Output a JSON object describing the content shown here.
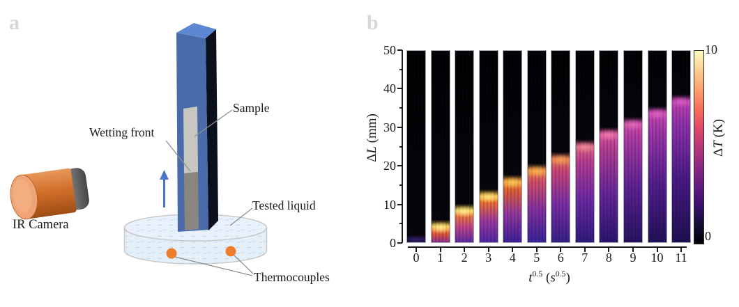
{
  "figure": {
    "panel_a_letter": "a",
    "panel_b_letter": "b"
  },
  "panel_a": {
    "labels": {
      "ir_camera": "IR Camera",
      "wetting_front": "Wetting front",
      "sample": "Sample",
      "tested_liquid": "Tested liquid",
      "thermocouples": "Thermocouples"
    },
    "colors": {
      "column_front": "#4a6ba9",
      "column_side": "#0c101e",
      "column_top": "#5d87d2",
      "sample_dry": "#c9c6c1",
      "sample_wet": "#8b8580",
      "camera_body": "#d2702a",
      "camera_face": "#efa477",
      "camera_cap": "#6a6a6a",
      "liquid_fill": "#e9f2fa",
      "liquid_speckle": "#bcd7ee",
      "thermocouple": "#ee7d2e",
      "arrow": "#4b76c8",
      "leader_line": "#8f8f8f"
    }
  },
  "panel_b": {
    "y_axis": {
      "title_delta": "Δ",
      "title_var": "L",
      "title_unit": " (mm)",
      "ticks": [
        "50",
        "40",
        "30",
        "20",
        "10",
        "0"
      ]
    },
    "x_axis": {
      "title_var": "t",
      "title_exp": "0.5",
      "title_mid": " (",
      "title_unit_var": "s",
      "title_unit_exp": "0.5",
      "title_close": ")",
      "ticks": [
        "0",
        "1",
        "2",
        "3",
        "4",
        "5",
        "6",
        "7",
        "8",
        "9",
        "10",
        "11"
      ]
    },
    "colorbar": {
      "title_delta": "Δ",
      "title_var": "T",
      "title_unit": " (K)",
      "max_label": "10",
      "min_label": "0"
    }
  },
  "chart_data": {
    "type": "heatmap",
    "description": "Sequence of 12 IR thermal images of a porous strip during capillary rise, one image per square-root-of-time value; the bright band marks the rising wetting front, which dims as it climbs.",
    "x": [
      0,
      1,
      2,
      3,
      4,
      5,
      6,
      7,
      8,
      9,
      10,
      11
    ],
    "xlabel": "t^0.5 (s^0.5)",
    "ylabel": "ΔL (mm)",
    "ylim": [
      0,
      50
    ],
    "colorbar_label": "ΔT (K)",
    "colorbar_range": [
      0,
      10
    ],
    "colormap": "magma",
    "colormap_stops": [
      "#000004",
      "#140e36",
      "#3b0f70",
      "#641a80",
      "#8c2981",
      "#b73779",
      "#de4968",
      "#f7705c",
      "#fe9f6d",
      "#fece91",
      "#fcfdbf"
    ],
    "wetting_front_mm": [
      0.8,
      4.7,
      8.9,
      12.7,
      16.5,
      19.4,
      22.4,
      25.7,
      28.9,
      31.6,
      34.4,
      37.5
    ],
    "front_peak_dT_K": [
      0.3,
      9,
      8.5,
      8,
      7.5,
      7,
      6.5,
      6,
      5.5,
      5,
      4.5,
      4
    ],
    "strip_styles": [
      {
        "tail0": "#140b33",
        "tail1": "#1d1045",
        "tail2": "#241456",
        "peak": "#2a175e",
        "core": "rgba(70,45,130,0.45)"
      },
      {
        "tail0": "#8c2f8e",
        "tail1": "#e0553a",
        "tail2": "#fb9b2f",
        "peak": "#fcd04a",
        "core": "#ffe98c"
      },
      {
        "tail0": "#5e2ba2",
        "tail1": "#c44489",
        "tail2": "#f58231",
        "peak": "#fcd04a",
        "core": "#ffeb96"
      },
      {
        "tail0": "#4f28a2",
        "tail1": "#a03a9e",
        "tail2": "#ef702f",
        "peak": "#fbbf3c",
        "core": "#fde07e"
      },
      {
        "tail0": "#3c2096",
        "tail1": "#93389e",
        "tail2": "#e06034",
        "peak": "#f59d38",
        "core": "#fbc354"
      },
      {
        "tail0": "#3a2398",
        "tail1": "#86319f",
        "tail2": "#d44f66",
        "peak": "#f18f42",
        "core": "#f8b050"
      },
      {
        "tail0": "#342086",
        "tail1": "#7c2ea4",
        "tail2": "#c84478",
        "peak": "#ea7a52",
        "core": "#f49a58"
      },
      {
        "tail0": "#2e1b7c",
        "tail1": "#6f2aa4",
        "tail2": "#b83d90",
        "peak": "#e06486",
        "core": "#ef8896"
      },
      {
        "tail0": "#2a156c",
        "tail1": "#672798",
        "tail2": "#b03d92",
        "peak": "#da549c",
        "core": "#ea78ac"
      },
      {
        "tail0": "#261361",
        "tail1": "#5d2292",
        "tail2": "#a53aa0",
        "peak": "#d048a8",
        "core": "#df6ab6"
      },
      {
        "tail0": "#221158",
        "tail1": "#531e8c",
        "tail2": "#9b36a6",
        "peak": "#c845ae",
        "core": "#d862be"
      },
      {
        "tail0": "#1e0f50",
        "tail1": "#4a1b86",
        "tail2": "#9133aa",
        "peak": "#c23fb0",
        "core": "#d25cc0"
      }
    ]
  }
}
